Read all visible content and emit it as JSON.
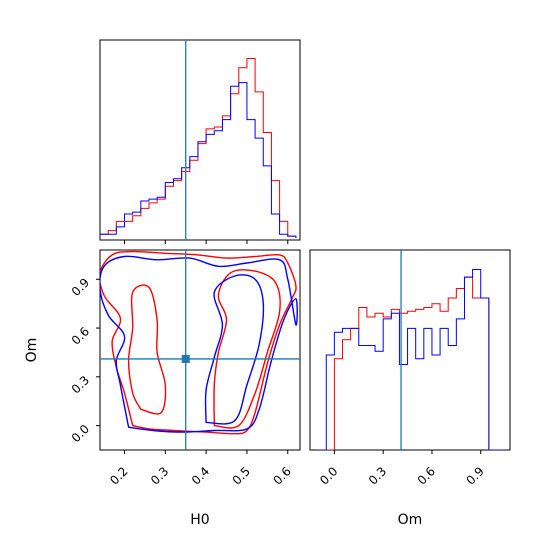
{
  "chart_data": {
    "type": "corner",
    "parameters": [
      "H0",
      "Om"
    ],
    "axis_labels": {
      "x_bottom_left": "H0",
      "x_bottom_right": "Om",
      "y_left": "Om"
    },
    "ranges": {
      "H0": [
        0.14,
        0.63
      ],
      "Om": [
        -0.15,
        1.08
      ]
    },
    "ticks": {
      "H0": [
        "0.2",
        "0.3",
        "0.4",
        "0.5",
        "0.6"
      ],
      "Om": [
        "0.0",
        "0.3",
        "0.6",
        "0.9"
      ]
    },
    "truth": {
      "H0": 0.35,
      "Om": 0.41
    },
    "colors": {
      "series_a": "#ff0000",
      "series_b": "#0000ff",
      "truth": "#1f77b4"
    },
    "marginal_H0": {
      "bin_edges": [
        0.14,
        0.16,
        0.18,
        0.2,
        0.22,
        0.24,
        0.26,
        0.28,
        0.3,
        0.32,
        0.34,
        0.36,
        0.38,
        0.4,
        0.42,
        0.44,
        0.46,
        0.48,
        0.5,
        0.52,
        0.54,
        0.56,
        0.58,
        0.6,
        0.62
      ],
      "series": [
        {
          "values": [
            0.02,
            0.04,
            0.09,
            0.09,
            0.12,
            0.16,
            0.19,
            0.21,
            0.28,
            0.31,
            0.36,
            0.42,
            0.51,
            0.59,
            0.6,
            0.66,
            0.78,
            0.92,
            0.97,
            0.79,
            0.57,
            0.31,
            0.09,
            0.01
          ]
        },
        {
          "values": [
            0.02,
            0.02,
            0.06,
            0.13,
            0.14,
            0.2,
            0.21,
            0.22,
            0.3,
            0.32,
            0.38,
            0.44,
            0.52,
            0.56,
            0.58,
            0.64,
            0.82,
            0.84,
            0.64,
            0.54,
            0.39,
            0.13,
            0.02,
            0.01
          ]
        }
      ]
    },
    "marginal_Om": {
      "bin_edges": [
        -0.1,
        -0.05,
        0.0,
        0.05,
        0.1,
        0.15,
        0.2,
        0.25,
        0.3,
        0.35,
        0.4,
        0.45,
        0.5,
        0.55,
        0.6,
        0.65,
        0.7,
        0.75,
        0.8,
        0.85,
        0.9,
        0.95,
        1.0,
        1.05
      ],
      "series": [
        {
          "values": [
            0.0,
            0.0,
            0.48,
            0.58,
            0.64,
            0.75,
            0.7,
            0.72,
            0.7,
            0.74,
            0.72,
            0.73,
            0.74,
            0.75,
            0.77,
            0.73,
            0.8,
            0.85,
            0.91,
            0.8,
            0.8,
            0.0,
            0.0
          ]
        },
        {
          "values": [
            0.0,
            0.5,
            0.62,
            0.64,
            0.64,
            0.55,
            0.55,
            0.52,
            0.69,
            0.72,
            0.45,
            0.64,
            0.48,
            0.64,
            0.5,
            0.64,
            0.55,
            0.69,
            0.91,
            0.95,
            0.8,
            0.0,
            0.0
          ]
        }
      ]
    },
    "contours_H0_Om": {
      "series_a": [
        [
          [
            0.22,
            0.0
          ],
          [
            0.26,
            -0.02
          ],
          [
            0.32,
            -0.03
          ],
          [
            0.4,
            -0.04
          ],
          [
            0.47,
            -0.05
          ],
          [
            0.5,
            -0.03
          ],
          [
            0.52,
            0.08
          ],
          [
            0.55,
            0.38
          ],
          [
            0.58,
            0.62
          ],
          [
            0.61,
            0.78
          ],
          [
            0.62,
            0.86
          ],
          [
            0.6,
            1.0
          ],
          [
            0.58,
            1.05
          ],
          [
            0.52,
            1.04
          ],
          [
            0.45,
            1.03
          ],
          [
            0.38,
            1.05
          ],
          [
            0.3,
            1.06
          ],
          [
            0.22,
            1.07
          ],
          [
            0.17,
            1.05
          ],
          [
            0.14,
            0.94
          ],
          [
            0.15,
            0.8
          ],
          [
            0.19,
            0.66
          ],
          [
            0.17,
            0.52
          ],
          [
            0.18,
            0.36
          ],
          [
            0.2,
            0.2
          ],
          [
            0.22,
            0.0
          ]
        ],
        [
          [
            0.42,
            0.0
          ],
          [
            0.48,
            0.0
          ],
          [
            0.52,
            0.2
          ],
          [
            0.55,
            0.45
          ],
          [
            0.58,
            0.7
          ],
          [
            0.57,
            0.88
          ],
          [
            0.52,
            0.95
          ],
          [
            0.46,
            0.94
          ],
          [
            0.43,
            0.8
          ],
          [
            0.45,
            0.65
          ],
          [
            0.43,
            0.45
          ],
          [
            0.42,
            0.25
          ],
          [
            0.42,
            0.0
          ]
        ],
        [
          [
            0.24,
            0.1
          ],
          [
            0.29,
            0.08
          ],
          [
            0.3,
            0.25
          ],
          [
            0.28,
            0.45
          ],
          [
            0.28,
            0.65
          ],
          [
            0.26,
            0.85
          ],
          [
            0.22,
            0.82
          ],
          [
            0.22,
            0.6
          ],
          [
            0.21,
            0.4
          ],
          [
            0.22,
            0.2
          ],
          [
            0.24,
            0.1
          ]
        ]
      ],
      "series_b": [
        [
          [
            0.21,
            -0.01
          ],
          [
            0.27,
            -0.03
          ],
          [
            0.34,
            -0.04
          ],
          [
            0.42,
            -0.03
          ],
          [
            0.5,
            -0.02
          ],
          [
            0.53,
            0.1
          ],
          [
            0.56,
            0.4
          ],
          [
            0.59,
            0.65
          ],
          [
            0.62,
            0.78
          ],
          [
            0.62,
            0.62
          ],
          [
            0.6,
            0.9
          ],
          [
            0.58,
            1.02
          ],
          [
            0.5,
            1.0
          ],
          [
            0.43,
            0.98
          ],
          [
            0.36,
            1.03
          ],
          [
            0.28,
            1.02
          ],
          [
            0.2,
            1.04
          ],
          [
            0.15,
            0.98
          ],
          [
            0.14,
            0.84
          ],
          [
            0.16,
            0.68
          ],
          [
            0.2,
            0.55
          ],
          [
            0.18,
            0.4
          ],
          [
            0.19,
            0.25
          ],
          [
            0.21,
            -0.01
          ]
        ],
        [
          [
            0.4,
            0.02
          ],
          [
            0.47,
            0.03
          ],
          [
            0.5,
            0.25
          ],
          [
            0.53,
            0.5
          ],
          [
            0.54,
            0.75
          ],
          [
            0.52,
            0.9
          ],
          [
            0.47,
            0.92
          ],
          [
            0.42,
            0.82
          ],
          [
            0.44,
            0.62
          ],
          [
            0.42,
            0.42
          ],
          [
            0.4,
            0.22
          ],
          [
            0.4,
            0.02
          ]
        ]
      ]
    }
  }
}
